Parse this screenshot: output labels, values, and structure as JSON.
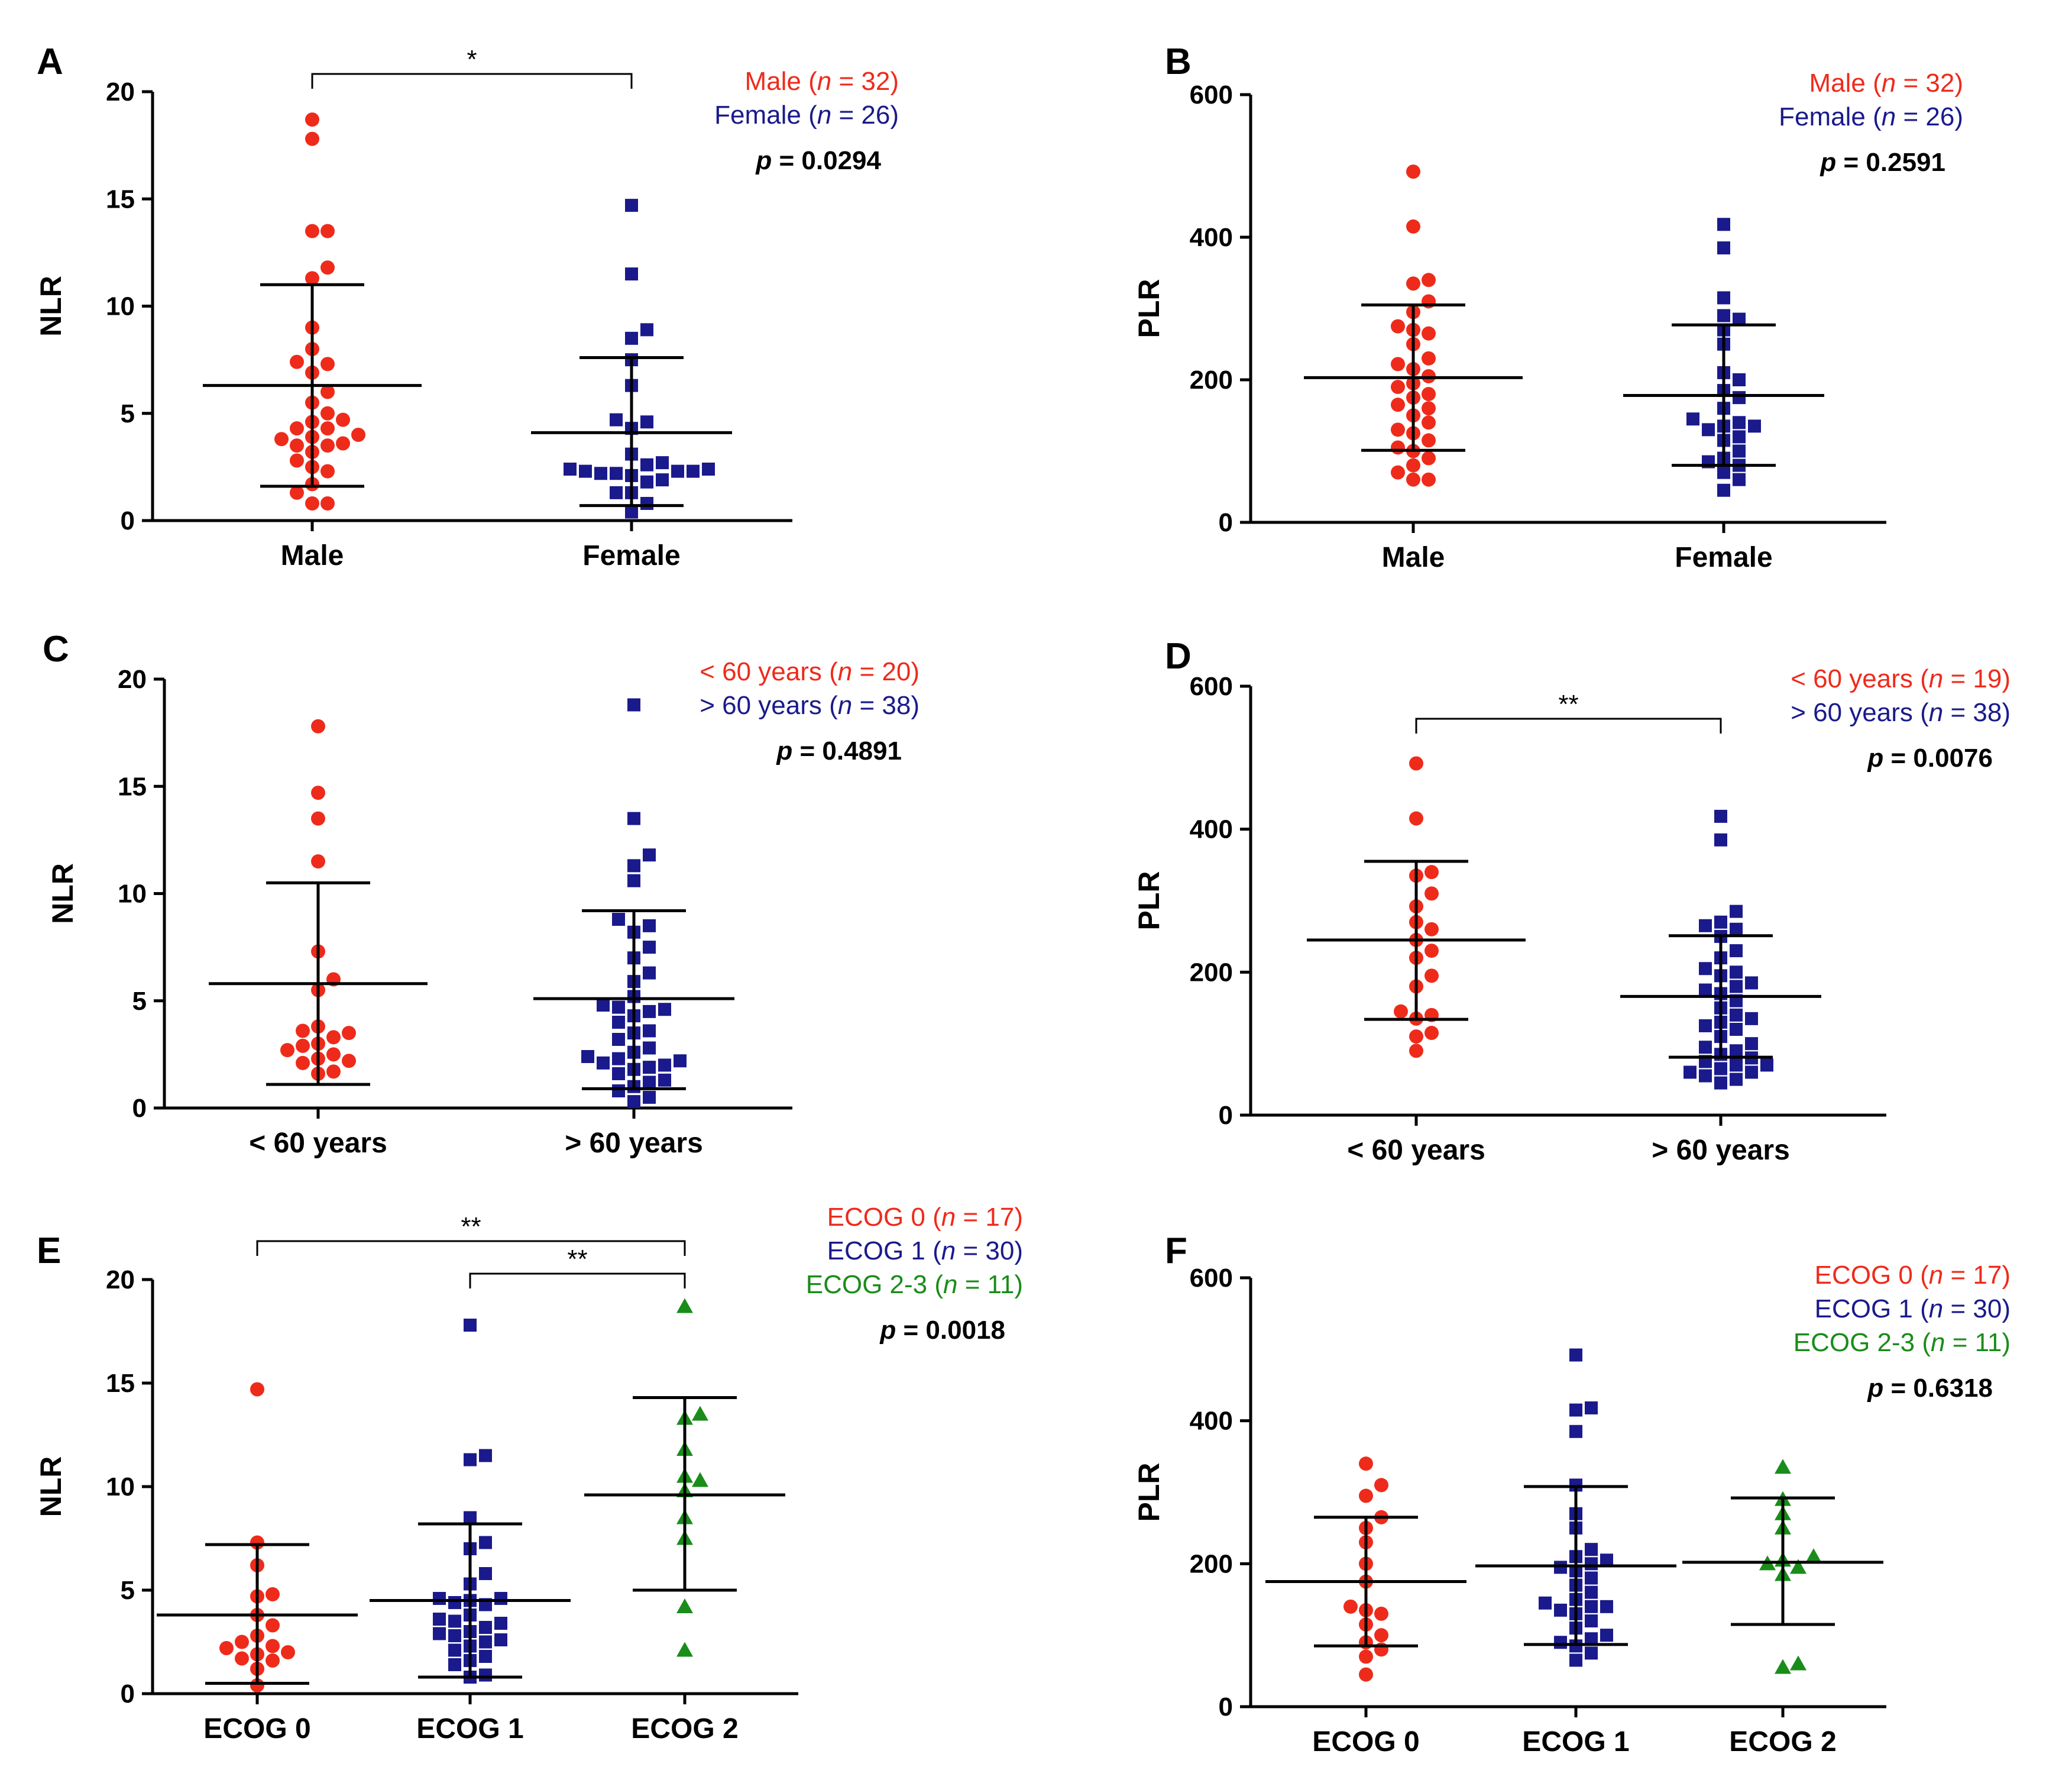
{
  "figure": {
    "colors": {
      "g0": "#ee2b1b",
      "g1": "#1a1a8c",
      "g2": "#1a8c1a",
      "axis": "#000000"
    }
  },
  "chart_data": [
    {
      "panel_label": "A",
      "type": "scatter",
      "ylabel": "NLR",
      "ylim": [
        0,
        20
      ],
      "yticks": [
        0,
        5,
        10,
        15,
        20
      ],
      "categories": [
        "Male",
        "Female"
      ],
      "series": [
        {
          "name": "Male",
          "marker": "circle",
          "mean": 6.3,
          "sd_low": 1.6,
          "sd_high": 11.0,
          "values": [
            18.7,
            17.8,
            13.5,
            13.5,
            11.8,
            11.3,
            9.0,
            8.0,
            7.4,
            7.3,
            6.9,
            6.0,
            5.5,
            5.0,
            4.7,
            4.6,
            4.3,
            4.3,
            4.0,
            3.9,
            3.8,
            3.6,
            3.5,
            3.5,
            3.2,
            2.8,
            2.5,
            2.3,
            1.7,
            1.3,
            0.8,
            0.8
          ]
        },
        {
          "name": "Female",
          "marker": "square",
          "mean": 4.1,
          "sd_low": 0.7,
          "sd_high": 7.6,
          "values": [
            14.7,
            11.5,
            8.9,
            8.5,
            7.5,
            6.3,
            4.7,
            4.6,
            4.3,
            3.1,
            2.7,
            2.6,
            2.4,
            2.4,
            2.3,
            2.3,
            2.3,
            2.2,
            2.2,
            2.1,
            1.9,
            1.8,
            1.3,
            1.3,
            0.8,
            0.4
          ]
        }
      ],
      "legend": [
        {
          "label": "Male",
          "n": "32",
          "color": "#ee2b1b"
        },
        {
          "label": "Female",
          "n": "26",
          "color": "#1a1a8c"
        }
      ],
      "p_value": "0.0294",
      "brackets": [
        {
          "from": 0,
          "to": 1,
          "label": "*"
        }
      ]
    },
    {
      "panel_label": "B",
      "type": "scatter",
      "ylabel": "PLR",
      "ylim": [
        0,
        600
      ],
      "yticks": [
        0,
        200,
        400,
        600
      ],
      "categories": [
        "Male",
        "Female"
      ],
      "series": [
        {
          "name": "Male",
          "marker": "circle",
          "mean": 203,
          "sd_low": 101,
          "sd_high": 305,
          "values": [
            492,
            415,
            340,
            335,
            310,
            295,
            275,
            270,
            265,
            250,
            230,
            222,
            215,
            205,
            195,
            190,
            180,
            175,
            165,
            160,
            150,
            140,
            130,
            125,
            115,
            105,
            100,
            90,
            80,
            70,
            60,
            60
          ]
        },
        {
          "name": "Female",
          "marker": "square",
          "mean": 178,
          "sd_low": 80,
          "sd_high": 277,
          "values": [
            418,
            385,
            315,
            290,
            285,
            270,
            250,
            210,
            200,
            185,
            175,
            160,
            145,
            140,
            135,
            135,
            130,
            120,
            115,
            100,
            90,
            85,
            80,
            70,
            60,
            45
          ]
        }
      ],
      "legend": [
        {
          "label": "Male",
          "n": "32",
          "color": "#ee2b1b"
        },
        {
          "label": "Female",
          "n": "26",
          "color": "#1a1a8c"
        }
      ],
      "p_value": "0.2591",
      "brackets": []
    },
    {
      "panel_label": "C",
      "type": "scatter",
      "ylabel": "NLR",
      "ylim": [
        0,
        20
      ],
      "yticks": [
        0,
        5,
        10,
        15,
        20
      ],
      "categories": [
        "< 60 years",
        "> 60 years"
      ],
      "series": [
        {
          "name": "< 60 years",
          "marker": "circle",
          "mean": 5.8,
          "sd_low": 1.1,
          "sd_high": 10.5,
          "values": [
            17.8,
            14.7,
            13.5,
            11.5,
            7.3,
            6.0,
            5.5,
            3.8,
            3.6,
            3.5,
            3.3,
            3.0,
            2.9,
            2.7,
            2.5,
            2.3,
            2.2,
            2.1,
            1.7,
            1.6
          ]
        },
        {
          "name": "> 60 years",
          "marker": "square",
          "mean": 5.1,
          "sd_low": 0.9,
          "sd_high": 9.2,
          "values": [
            18.8,
            13.5,
            11.8,
            11.3,
            10.6,
            8.8,
            8.5,
            8.2,
            7.5,
            7.0,
            6.3,
            5.9,
            5.2,
            4.8,
            4.7,
            4.6,
            4.5,
            4.3,
            4.0,
            3.6,
            3.5,
            3.2,
            2.8,
            2.6,
            2.4,
            2.3,
            2.2,
            2.1,
            2.0,
            1.9,
            1.8,
            1.6,
            1.3,
            1.2,
            1.0,
            0.8,
            0.5,
            0.3
          ]
        }
      ],
      "legend": [
        {
          "label": "< 60 years",
          "n": "20",
          "color": "#ee2b1b"
        },
        {
          "label": "> 60 years",
          "n": "38",
          "color": "#1a1a8c"
        }
      ],
      "p_value": "0.4891",
      "brackets": []
    },
    {
      "panel_label": "D",
      "type": "scatter",
      "ylabel": "PLR",
      "ylim": [
        0,
        600
      ],
      "yticks": [
        0,
        200,
        400,
        600
      ],
      "categories": [
        "< 60 years",
        "> 60 years"
      ],
      "series": [
        {
          "name": "< 60 years",
          "marker": "circle",
          "mean": 245,
          "sd_low": 134,
          "sd_high": 355,
          "values": [
            492,
            415,
            340,
            335,
            310,
            292,
            270,
            260,
            245,
            230,
            220,
            195,
            180,
            145,
            140,
            135,
            115,
            110,
            90
          ]
        },
        {
          "name": "> 60 years",
          "marker": "square",
          "mean": 166,
          "sd_low": 81,
          "sd_high": 251,
          "values": [
            418,
            385,
            285,
            270,
            265,
            260,
            250,
            230,
            220,
            205,
            200,
            195,
            185,
            180,
            175,
            170,
            160,
            150,
            140,
            135,
            130,
            125,
            120,
            110,
            100,
            95,
            90,
            85,
            80,
            75,
            70,
            65,
            60,
            55,
            50,
            45,
            60,
            70
          ]
        }
      ],
      "legend": [
        {
          "label": "< 60 years",
          "n": "19",
          "color": "#ee2b1b"
        },
        {
          "label": "> 60 years",
          "n": "38",
          "color": "#1a1a8c"
        }
      ],
      "p_value": "0.0076",
      "brackets": [
        {
          "from": 0,
          "to": 1,
          "label": "**"
        }
      ]
    },
    {
      "panel_label": "E",
      "type": "scatter",
      "ylabel": "NLR",
      "ylim": [
        0,
        20
      ],
      "yticks": [
        0,
        5,
        10,
        15,
        20
      ],
      "categories": [
        "ECOG 0",
        "ECOG 1",
        "ECOG 2"
      ],
      "series": [
        {
          "name": "ECOG 0",
          "marker": "circle",
          "mean": 3.8,
          "sd_low": 0.5,
          "sd_high": 7.2,
          "values": [
            14.7,
            7.3,
            6.2,
            4.8,
            4.7,
            3.8,
            3.3,
            2.8,
            2.5,
            2.3,
            2.2,
            2.0,
            1.9,
            1.7,
            1.6,
            1.2,
            0.4
          ]
        },
        {
          "name": "ECOG 1",
          "marker": "square",
          "mean": 4.5,
          "sd_low": 0.8,
          "sd_high": 8.2,
          "values": [
            17.8,
            11.5,
            11.3,
            8.5,
            7.3,
            7.0,
            5.8,
            5.3,
            4.6,
            4.6,
            4.5,
            4.4,
            4.3,
            3.8,
            3.6,
            3.5,
            3.4,
            3.2,
            3.0,
            2.9,
            2.8,
            2.6,
            2.5,
            2.3,
            2.1,
            1.8,
            1.6,
            1.4,
            0.9,
            0.8
          ]
        },
        {
          "name": "ECOG 2",
          "marker": "triangle",
          "mean": 9.6,
          "sd_low": 5.0,
          "sd_high": 14.3,
          "values": [
            18.7,
            13.5,
            13.3,
            11.8,
            10.5,
            10.3,
            9.8,
            8.5,
            7.5,
            4.2,
            2.1
          ]
        }
      ],
      "legend": [
        {
          "label": "ECOG 0",
          "n": "17",
          "color": "#ee2b1b"
        },
        {
          "label": "ECOG 1",
          "n": "30",
          "color": "#1a1a8c"
        },
        {
          "label": "ECOG 2-3",
          "n": "11",
          "color": "#1a8c1a"
        }
      ],
      "p_value": "0.0018",
      "brackets": [
        {
          "from": 0,
          "to": 2,
          "label": "**"
        },
        {
          "from": 1,
          "to": 2,
          "label": "**"
        }
      ]
    },
    {
      "panel_label": "F",
      "type": "scatter",
      "ylabel": "PLR",
      "ylim": [
        0,
        600
      ],
      "yticks": [
        0,
        200,
        400,
        600
      ],
      "categories": [
        "ECOG 0",
        "ECOG 1",
        "ECOG 2"
      ],
      "series": [
        {
          "name": "ECOG 0",
          "marker": "circle",
          "mean": 175,
          "sd_low": 85,
          "sd_high": 265,
          "values": [
            340,
            310,
            295,
            265,
            250,
            230,
            200,
            175,
            140,
            135,
            130,
            115,
            100,
            90,
            80,
            70,
            45
          ]
        },
        {
          "name": "ECOG 1",
          "marker": "square",
          "mean": 197,
          "sd_low": 87,
          "sd_high": 308,
          "values": [
            492,
            418,
            415,
            385,
            310,
            270,
            250,
            220,
            210,
            205,
            200,
            195,
            190,
            180,
            170,
            160,
            150,
            145,
            140,
            140,
            135,
            130,
            120,
            110,
            100,
            95,
            90,
            85,
            75,
            65
          ]
        },
        {
          "name": "ECOG 2",
          "marker": "triangle",
          "mean": 202,
          "sd_low": 115,
          "sd_high": 292,
          "values": [
            335,
            290,
            270,
            250,
            210,
            205,
            200,
            195,
            185,
            60,
            55
          ]
        }
      ],
      "legend": [
        {
          "label": "ECOG 0",
          "n": "17",
          "color": "#ee2b1b"
        },
        {
          "label": "ECOG 1",
          "n": "30",
          "color": "#1a1a8c"
        },
        {
          "label": "ECOG 2-3",
          "n": "11",
          "color": "#1a8c1a"
        }
      ],
      "p_value": "0.6318",
      "brackets": []
    }
  ]
}
